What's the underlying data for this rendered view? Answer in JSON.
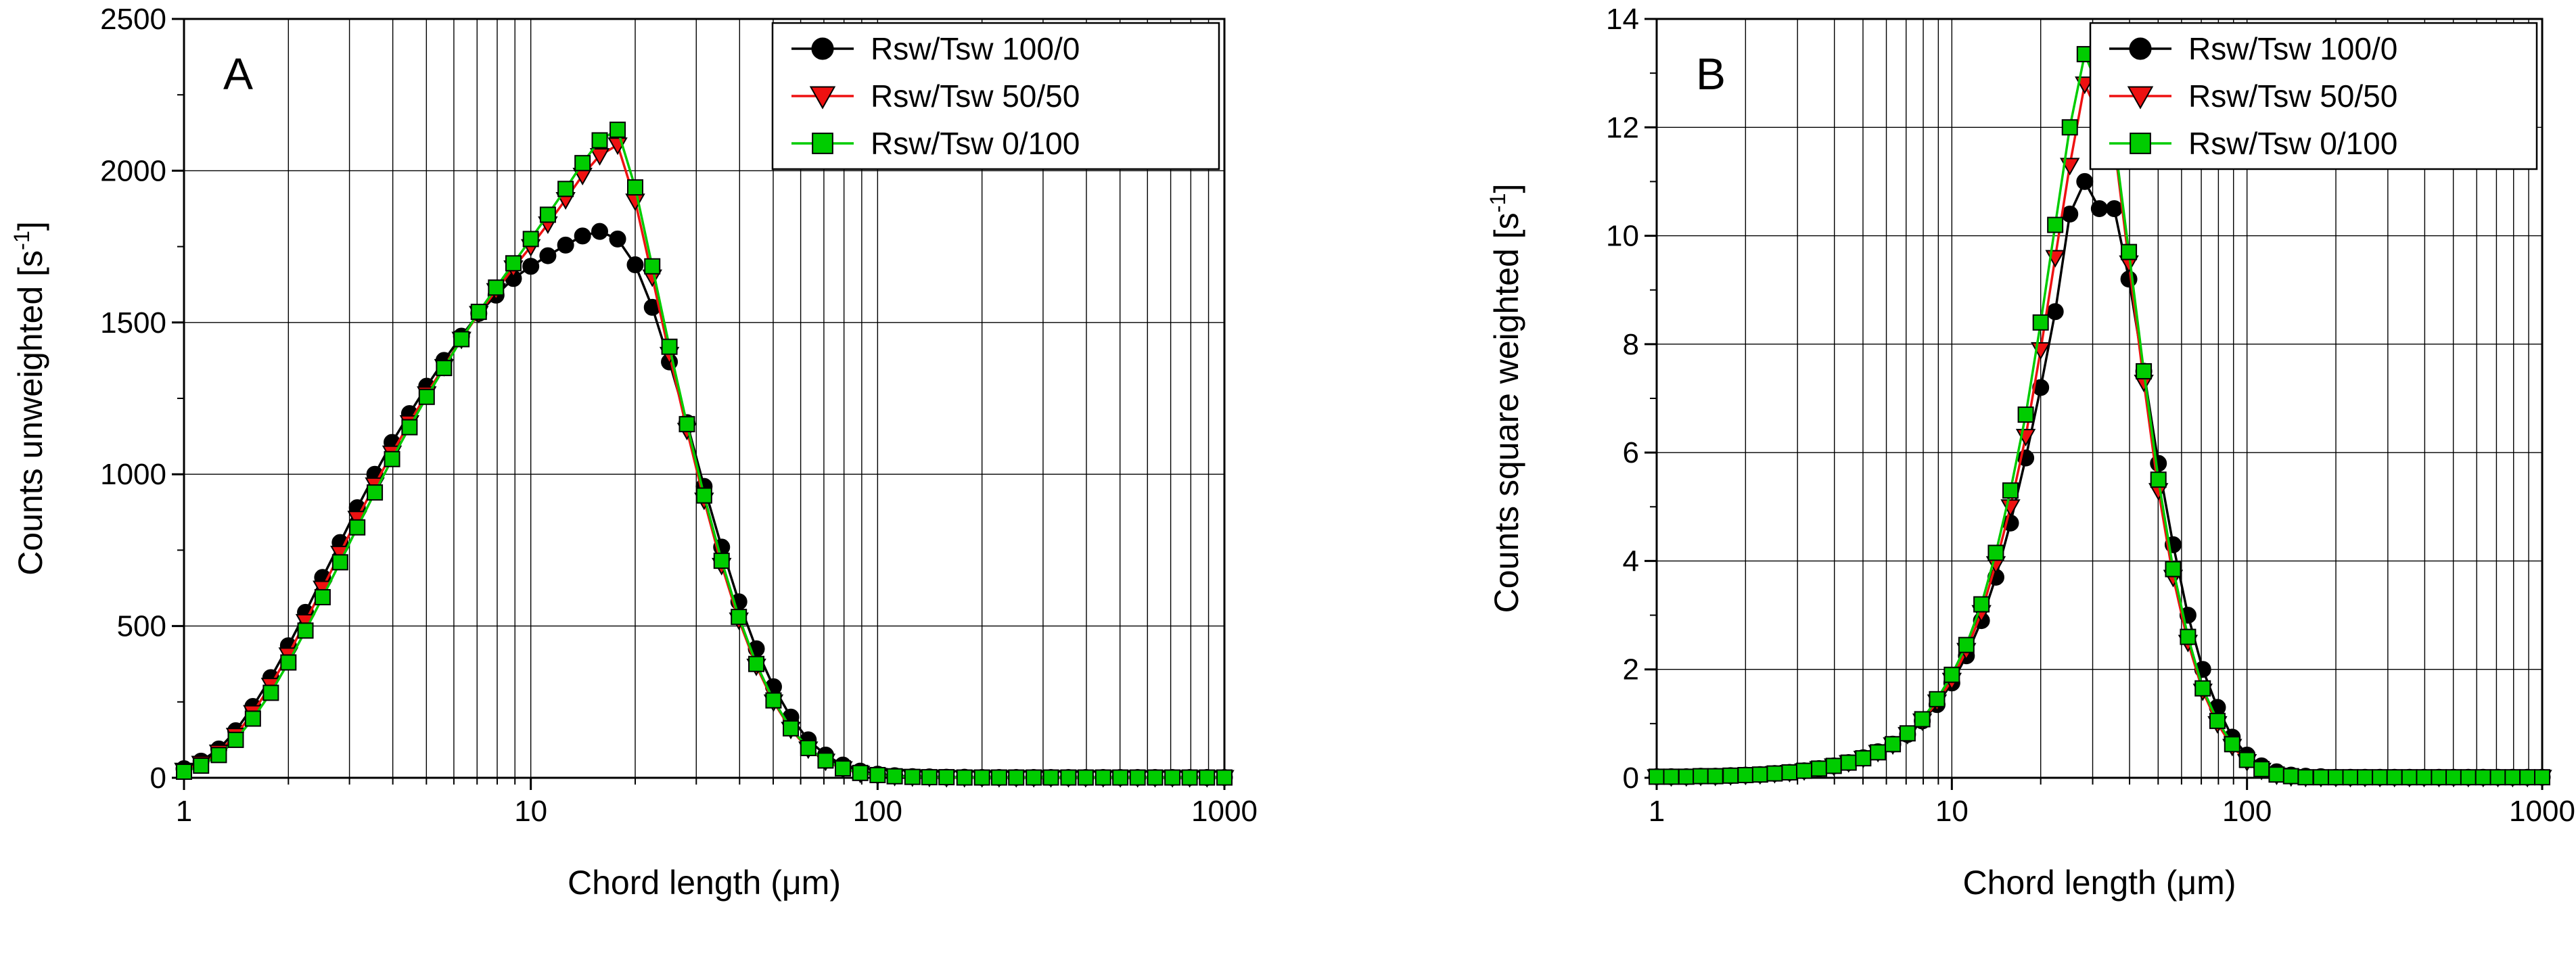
{
  "figure": {
    "background": "#ffffff"
  },
  "chart_data": [
    {
      "id": "A",
      "type": "line",
      "panel_label": "A",
      "xlabel": "Chord length (μm)",
      "ylabel": "Counts unweighted [s⁻¹]",
      "x_scale": "log",
      "xlim": [
        1,
        1000
      ],
      "ylim": [
        0,
        2500
      ],
      "x_major_ticks": [
        1,
        10,
        100,
        1000
      ],
      "y_major_ticks": [
        0,
        500,
        1000,
        1500,
        2000,
        2500
      ],
      "y_minor_step": 250,
      "grid": true,
      "legend_position": "top-right",
      "x": [
        1,
        1.12,
        1.26,
        1.41,
        1.58,
        1.78,
        2,
        2.24,
        2.51,
        2.82,
        3.16,
        3.55,
        3.98,
        4.47,
        5.01,
        5.62,
        6.31,
        7.08,
        7.94,
        8.91,
        10,
        11.2,
        12.6,
        14.1,
        15.8,
        17.8,
        20,
        22.4,
        25.1,
        28.2,
        31.6,
        35.5,
        39.8,
        44.7,
        50.1,
        56.2,
        63.1,
        70.8,
        79.4,
        89.1,
        100,
        112,
        126,
        141,
        158,
        178,
        200,
        224,
        251,
        282,
        316,
        355,
        398,
        447,
        501,
        562,
        631,
        708,
        794,
        891,
        1000
      ],
      "series": [
        {
          "name": "Rsw/Tsw 100/0",
          "marker": "circle",
          "color": "#000000",
          "values": [
            30,
            55,
            95,
            155,
            235,
            330,
            435,
            545,
            660,
            775,
            890,
            1000,
            1105,
            1200,
            1290,
            1375,
            1455,
            1530,
            1590,
            1645,
            1685,
            1720,
            1755,
            1785,
            1800,
            1775,
            1690,
            1550,
            1370,
            1170,
            960,
            760,
            580,
            425,
            300,
            200,
            125,
            75,
            42,
            22,
            12,
            7,
            4,
            3,
            2,
            2,
            1,
            1,
            1,
            1,
            1,
            1,
            1,
            1,
            1,
            1,
            1,
            1,
            1,
            1,
            1
          ]
        },
        {
          "name": "Rsw/Tsw 50/50",
          "marker": "triangle-down",
          "color": "#ee1111",
          "values": [
            25,
            48,
            85,
            140,
            215,
            305,
            405,
            515,
            625,
            740,
            855,
            965,
            1070,
            1170,
            1265,
            1355,
            1445,
            1530,
            1605,
            1680,
            1750,
            1825,
            1905,
            1985,
            2050,
            2085,
            1900,
            1650,
            1395,
            1145,
            915,
            700,
            520,
            368,
            250,
            160,
            95,
            55,
            30,
            15,
            8,
            5,
            3,
            2,
            1,
            1,
            1,
            1,
            1,
            1,
            1,
            1,
            1,
            1,
            1,
            1,
            1,
            1,
            1,
            1,
            1
          ]
        },
        {
          "name": "Rsw/Tsw 0/100",
          "marker": "square",
          "color": "#00cc00",
          "values": [
            20,
            40,
            75,
            125,
            195,
            280,
            380,
            485,
            595,
            710,
            825,
            940,
            1050,
            1155,
            1255,
            1350,
            1445,
            1535,
            1615,
            1695,
            1775,
            1855,
            1940,
            2025,
            2100,
            2135,
            1945,
            1685,
            1420,
            1165,
            930,
            715,
            530,
            375,
            255,
            163,
            98,
            57,
            31,
            16,
            9,
            5,
            3,
            2,
            2,
            1,
            1,
            1,
            1,
            1,
            1,
            1,
            1,
            1,
            1,
            1,
            1,
            1,
            1,
            1,
            1
          ]
        }
      ]
    },
    {
      "id": "B",
      "type": "line",
      "panel_label": "B",
      "xlabel": "Chord length (μm)",
      "ylabel": "Counts square weighted [s⁻¹]",
      "x_scale": "log",
      "xlim": [
        1,
        1000
      ],
      "ylim": [
        0,
        14
      ],
      "x_major_ticks": [
        1,
        10,
        100,
        1000
      ],
      "y_major_ticks": [
        0,
        2,
        4,
        6,
        8,
        10,
        12,
        14
      ],
      "y_minor_step": 1,
      "grid": true,
      "legend_position": "top-right",
      "x": [
        1,
        1.12,
        1.26,
        1.41,
        1.58,
        1.78,
        2,
        2.24,
        2.51,
        2.82,
        3.16,
        3.55,
        3.98,
        4.47,
        5.01,
        5.62,
        6.31,
        7.08,
        7.94,
        8.91,
        10,
        11.2,
        12.6,
        14.1,
        15.8,
        17.8,
        20,
        22.4,
        25.1,
        28.2,
        31.6,
        35.5,
        39.8,
        44.7,
        50.1,
        56.2,
        63.1,
        70.8,
        79.4,
        89.1,
        100,
        112,
        126,
        141,
        158,
        178,
        200,
        224,
        251,
        282,
        316,
        355,
        398,
        447,
        501,
        562,
        631,
        708,
        794,
        891,
        1000
      ],
      "series": [
        {
          "name": "Rsw/Tsw 100/0",
          "marker": "circle",
          "color": "#000000",
          "values": [
            0.02,
            0.02,
            0.02,
            0.03,
            0.03,
            0.04,
            0.05,
            0.06,
            0.08,
            0.1,
            0.13,
            0.17,
            0.22,
            0.28,
            0.37,
            0.48,
            0.62,
            0.8,
            1.05,
            1.35,
            1.75,
            2.25,
            2.9,
            3.7,
            4.7,
            5.9,
            7.2,
            8.6,
            10.4,
            11.0,
            10.5,
            10.5,
            9.2,
            7.5,
            5.8,
            4.3,
            3.0,
            2.0,
            1.3,
            0.75,
            0.42,
            0.22,
            0.11,
            0.05,
            0.03,
            0.02,
            0.01,
            0.01,
            0.01,
            0.01,
            0.01,
            0.01,
            0.01,
            0.01,
            0.01,
            0.01,
            0.01,
            0.01,
            0.01,
            0.01,
            0.01
          ]
        },
        {
          "name": "Rsw/Tsw 50/50",
          "marker": "triangle-down",
          "color": "#ee1111",
          "values": [
            0.02,
            0.02,
            0.02,
            0.03,
            0.03,
            0.04,
            0.05,
            0.06,
            0.08,
            0.1,
            0.13,
            0.17,
            0.22,
            0.28,
            0.36,
            0.47,
            0.61,
            0.8,
            1.05,
            1.4,
            1.8,
            2.35,
            3.05,
            3.95,
            5.0,
            6.3,
            7.9,
            9.6,
            11.3,
            12.8,
            12.2,
            11.7,
            9.5,
            7.3,
            5.3,
            3.7,
            2.5,
            1.6,
            1.0,
            0.58,
            0.3,
            0.14,
            0.05,
            0.02,
            0.01,
            0.01,
            0.01,
            0.01,
            0.01,
            0.01,
            0.01,
            0.01,
            0.01,
            0.01,
            0.01,
            0.01,
            0.01,
            0.01,
            0.01,
            0.01,
            0.01
          ]
        },
        {
          "name": "Rsw/Tsw 0/100",
          "marker": "square",
          "color": "#00cc00",
          "values": [
            0.02,
            0.02,
            0.02,
            0.03,
            0.03,
            0.04,
            0.05,
            0.06,
            0.08,
            0.1,
            0.13,
            0.17,
            0.22,
            0.28,
            0.36,
            0.47,
            0.62,
            0.82,
            1.08,
            1.45,
            1.9,
            2.45,
            3.2,
            4.15,
            5.3,
            6.7,
            8.4,
            10.2,
            12.0,
            13.35,
            12.7,
            11.8,
            9.7,
            7.5,
            5.5,
            3.85,
            2.6,
            1.65,
            1.05,
            0.62,
            0.33,
            0.16,
            0.06,
            0.03,
            0.01,
            0.01,
            0.01,
            0.01,
            0.01,
            0.01,
            0.01,
            0.01,
            0.01,
            0.01,
            0.01,
            0.01,
            0.01,
            0.01,
            0.01,
            0.01,
            0.01
          ]
        }
      ]
    }
  ]
}
